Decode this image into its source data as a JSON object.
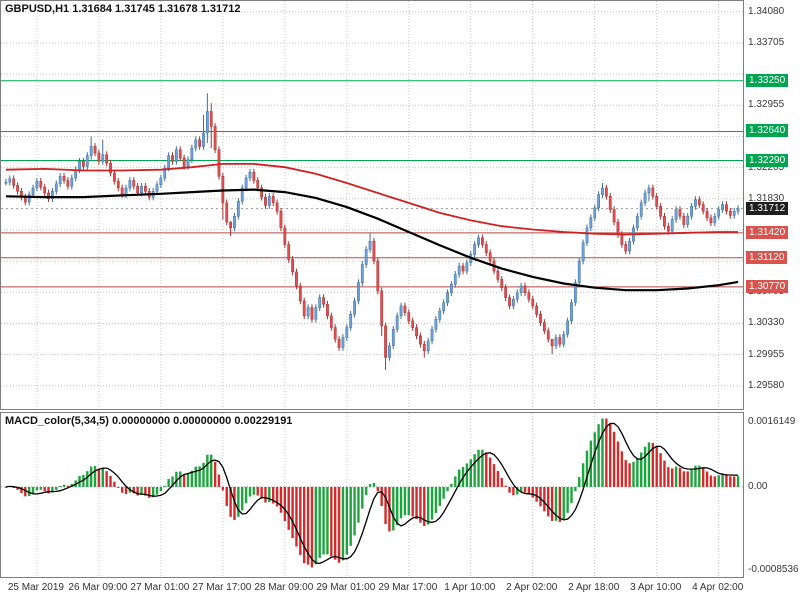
{
  "symbol_header": {
    "symbol": "GBPUSD,H1",
    "open": "1.31684",
    "high": "1.31745",
    "low": "1.31678",
    "close": "1.31712",
    "text": "GBPUSD,H1 1.31684 1.31745 1.31678 1.31712"
  },
  "macd_header": {
    "name": "MACD_color(5,34,5)",
    "values": [
      "0.00000000",
      "0.00000000",
      "0.00229191"
    ],
    "text": "MACD_color(5,34,5) 0.00000000 0.00000000 0.00229191"
  },
  "price_axis_labels": [
    "1.34080",
    "1.33705",
    "1.32955",
    "1.32205",
    "1.31830",
    "1.30705",
    "1.30330",
    "1.29955",
    "1.29580"
  ],
  "macd_axis": {
    "top_label": "0.0016149",
    "zero_label": "0.00",
    "bottom_label": "-0.0008536"
  },
  "current_price_label": "1.31712",
  "level_labels": {
    "green": [
      "1.33250",
      "1.32640",
      "1.32290"
    ],
    "red": [
      "1.31420",
      "1.31120",
      "1.30770"
    ]
  },
  "time_axis": {
    "labels": [
      {
        "bar": 8,
        "text": "25 Mar 2019"
      },
      {
        "bar": 24,
        "text": "26 Mar 09:00"
      },
      {
        "bar": 40,
        "text": "27 Mar 01:00"
      },
      {
        "bar": 56,
        "text": "27 Mar 17:00"
      },
      {
        "bar": 72,
        "text": "28 Mar 09:00"
      },
      {
        "bar": 88,
        "text": "29 Mar 01:00"
      },
      {
        "bar": 104,
        "text": "29 Mar 17:00"
      },
      {
        "bar": 120,
        "text": "1 Apr 10:00"
      },
      {
        "bar": 136,
        "text": "2 Apr 02:00"
      },
      {
        "bar": 152,
        "text": "2 Apr 18:00"
      },
      {
        "bar": 168,
        "text": "3 Apr 10:00"
      },
      {
        "bar": 184,
        "text": "4 Apr 02:00"
      }
    ]
  },
  "chart_data": {
    "type": "candlestick",
    "symbol": "GBPUSD",
    "timeframe": "H1",
    "price_axis": {
      "max": 1.3421,
      "min": 1.293,
      "grid_start": 1.3408,
      "grid_step": 0.00375,
      "grid_count": 13
    },
    "levels": {
      "green": [
        1.3325,
        1.3264,
        1.3229
      ],
      "red": [
        1.3142,
        1.3112,
        1.3077
      ]
    },
    "current_price": 1.31712,
    "closes": [
      1.3203,
      1.3207,
      1.3199,
      1.3192,
      1.3185,
      1.3179,
      1.3188,
      1.3196,
      1.3204,
      1.3197,
      1.319,
      1.3183,
      1.3192,
      1.3201,
      1.321,
      1.3205,
      1.3198,
      1.3208,
      1.3218,
      1.3228,
      1.3222,
      1.3235,
      1.3246,
      1.3238,
      1.3228,
      1.3236,
      1.3226,
      1.3214,
      1.3204,
      1.3196,
      1.3188,
      1.3196,
      1.3205,
      1.3198,
      1.319,
      1.3198,
      1.3192,
      1.3185,
      1.3192,
      1.32,
      1.3208,
      1.322,
      1.3235,
      1.3228,
      1.3242,
      1.3232,
      1.3222,
      1.323,
      1.3244,
      1.3254,
      1.3246,
      1.3262,
      1.3288,
      1.327,
      1.3242,
      1.321,
      1.3178,
      1.3155,
      1.3148,
      1.3162,
      1.318,
      1.3196,
      1.3208,
      1.3215,
      1.3205,
      1.3196,
      1.3185,
      1.3175,
      1.3186,
      1.3178,
      1.3168,
      1.3148,
      1.3128,
      1.311,
      1.3095,
      1.3078,
      1.306,
      1.3042,
      1.3052,
      1.3038,
      1.3052,
      1.3064,
      1.3056,
      1.3042,
      1.3028,
      1.3014,
      1.3004,
      1.3016,
      1.3028,
      1.3044,
      1.306,
      1.3082,
      1.3104,
      1.3122,
      1.3132,
      1.3108,
      1.3072,
      1.303,
      1.2992,
      1.3006,
      1.3026,
      1.3042,
      1.3054,
      1.3046,
      1.3036,
      1.3028,
      1.3018,
      1.3008,
      1.3,
      1.3012,
      1.3026,
      1.3038,
      1.3048,
      1.3058,
      1.307,
      1.308,
      1.3092,
      1.3102,
      1.3096,
      1.3106,
      1.3116,
      1.3128,
      1.3136,
      1.3128,
      1.3118,
      1.3108,
      1.3096,
      1.3086,
      1.3076,
      1.3064,
      1.3054,
      1.3062,
      1.307,
      1.3078,
      1.307,
      1.3062,
      1.3054,
      1.3044,
      1.3034,
      1.3024,
      1.3014,
      1.3006,
      1.3016,
      1.3008,
      1.302,
      1.3036,
      1.3058,
      1.3082,
      1.3108,
      1.313,
      1.3148,
      1.316,
      1.3172,
      1.3188,
      1.3196,
      1.3186,
      1.317,
      1.3155,
      1.314,
      1.3128,
      1.312,
      1.3132,
      1.3148,
      1.3162,
      1.3178,
      1.319,
      1.3196,
      1.3186,
      1.3174,
      1.3162,
      1.315,
      1.3144,
      1.3158,
      1.317,
      1.3162,
      1.3152,
      1.3162,
      1.3174,
      1.3182,
      1.3176,
      1.3168,
      1.316,
      1.3154,
      1.3162,
      1.317,
      1.3176,
      1.3168,
      1.3163,
      1.3168,
      1.31712
    ],
    "default_wick": 0.0004,
    "wick_overrides": {
      "22": [
        1.3258,
        1.323
      ],
      "25": [
        1.3254,
        1.3224
      ],
      "51": [
        1.3284,
        1.3242
      ],
      "52": [
        1.331,
        1.325
      ],
      "53": [
        1.3298,
        1.3244
      ],
      "56": [
        1.3214,
        1.3158
      ],
      "58": [
        1.3156,
        1.3138
      ],
      "94": [
        1.3142,
        1.3118
      ],
      "97": [
        1.3076,
        1.3018
      ],
      "98": [
        1.3034,
        1.2977
      ],
      "108": [
        1.3012,
        1.2992
      ],
      "141": [
        1.3012,
        1.2996
      ],
      "154": [
        1.3202,
        1.3184
      ],
      "166": [
        1.32,
        1.318
      ]
    },
    "ma_red_anchors": [
      [
        0,
        1.3218
      ],
      [
        10,
        1.3219
      ],
      [
        20,
        1.3217
      ],
      [
        30,
        1.3217
      ],
      [
        40,
        1.3218
      ],
      [
        48,
        1.3221
      ],
      [
        56,
        1.3225
      ],
      [
        64,
        1.3225
      ],
      [
        72,
        1.3221
      ],
      [
        80,
        1.3213
      ],
      [
        88,
        1.3202
      ],
      [
        96,
        1.319
      ],
      [
        104,
        1.3178
      ],
      [
        112,
        1.3166
      ],
      [
        120,
        1.3157
      ],
      [
        128,
        1.315
      ],
      [
        136,
        1.3146
      ],
      [
        144,
        1.3143
      ],
      [
        152,
        1.3141
      ],
      [
        160,
        1.314
      ],
      [
        168,
        1.3141
      ],
      [
        176,
        1.3142
      ],
      [
        184,
        1.3143
      ],
      [
        189,
        1.3143
      ]
    ],
    "ma_black_anchors": [
      [
        0,
        1.3186
      ],
      [
        10,
        1.3185
      ],
      [
        20,
        1.3185
      ],
      [
        30,
        1.3187
      ],
      [
        40,
        1.3189
      ],
      [
        48,
        1.3191
      ],
      [
        56,
        1.3193
      ],
      [
        64,
        1.3194
      ],
      [
        72,
        1.3191
      ],
      [
        80,
        1.3184
      ],
      [
        88,
        1.3173
      ],
      [
        96,
        1.3159
      ],
      [
        104,
        1.3143
      ],
      [
        112,
        1.3127
      ],
      [
        120,
        1.3112
      ],
      [
        128,
        1.3099
      ],
      [
        136,
        1.3089
      ],
      [
        144,
        1.3081
      ],
      [
        152,
        1.3076
      ],
      [
        160,
        1.3073
      ],
      [
        168,
        1.3073
      ],
      [
        176,
        1.3075
      ],
      [
        184,
        1.3079
      ],
      [
        189,
        1.3083
      ]
    ],
    "macd_params": {
      "fast": 5,
      "slow": 34,
      "signal": 5
    }
  },
  "colors": {
    "candle_up": "#6fa3d8",
    "candle_up_stroke": "#3f6f9f",
    "candle_down": "#e05050",
    "candle_down_stroke": "#a83232",
    "ma_red": "#d02020",
    "ma_black": "#000000",
    "level_green": "#00a550",
    "level_red": "#b94a48",
    "badge_green": "#00a550",
    "badge_red": "#d9534f",
    "badge_black": "#1f1f1f",
    "macd_up": "#1ca53c",
    "macd_down": "#d42a2a",
    "macd_signal": "#000000",
    "grid": "#c8c8c8"
  }
}
